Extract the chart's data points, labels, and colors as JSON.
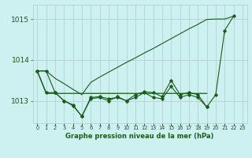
{
  "title": "Graphe pression niveau de la mer (hPa)",
  "bg_color": "#cdf0f0",
  "grid_color": "#b0cccc",
  "line_color": "#1a5c1a",
  "x_labels": [
    "0",
    "1",
    "2",
    "3",
    "4",
    "5",
    "6",
    "7",
    "8",
    "9",
    "10",
    "11",
    "12",
    "13",
    "14",
    "15",
    "16",
    "17",
    "18",
    "19",
    "20",
    "21",
    "22",
    "23"
  ],
  "ylim": [
    1012.45,
    1015.35
  ],
  "yticks": [
    1013.0,
    1014.0,
    1015.0
  ],
  "line_long": {
    "x": [
      0,
      1,
      2,
      3,
      4,
      5,
      6,
      7,
      8,
      9,
      10,
      11,
      12,
      13,
      14,
      15,
      16,
      17,
      18,
      19,
      20,
      21,
      22
    ],
    "y": [
      1013.73,
      1013.73,
      1013.55,
      1013.42,
      1013.28,
      1013.15,
      1013.45,
      1013.58,
      1013.7,
      1013.82,
      1013.94,
      1014.05,
      1014.17,
      1014.28,
      1014.4,
      1014.52,
      1014.64,
      1014.76,
      1014.87,
      1014.99,
      1015.0,
      1015.0,
      1015.07
    ]
  },
  "line_jagged": {
    "x": [
      0,
      1,
      2,
      3,
      4,
      5,
      6,
      7,
      8,
      9,
      10,
      11,
      12,
      13,
      14,
      15,
      16,
      17,
      18,
      19,
      20,
      21,
      22
    ],
    "y": [
      1013.73,
      1013.73,
      1013.2,
      1013.0,
      1012.9,
      1012.62,
      1013.05,
      1013.08,
      1013.0,
      1013.1,
      1013.0,
      1013.15,
      1013.22,
      1013.2,
      1013.1,
      1013.5,
      1013.15,
      1013.2,
      1013.15,
      1012.85,
      1013.15,
      1014.72,
      1015.07
    ]
  },
  "line_flat": {
    "x": [
      0,
      1,
      2,
      3,
      4,
      5,
      6,
      7,
      8,
      9,
      10,
      11,
      12,
      13,
      14,
      15,
      16,
      17,
      18,
      19
    ],
    "y": [
      1013.73,
      1013.18,
      1013.18,
      1013.18,
      1013.18,
      1013.18,
      1013.18,
      1013.18,
      1013.18,
      1013.18,
      1013.18,
      1013.18,
      1013.18,
      1013.18,
      1013.18,
      1013.18,
      1013.18,
      1013.18,
      1013.18,
      1013.18
    ]
  },
  "line_bottom": {
    "x": [
      0,
      1,
      2,
      3,
      4,
      5,
      6,
      7,
      8,
      9,
      10,
      11,
      12,
      13,
      14,
      15,
      16,
      17,
      18,
      19
    ],
    "y": [
      1013.73,
      1013.2,
      1013.2,
      1013.0,
      1012.88,
      1012.62,
      1013.08,
      1013.1,
      1013.05,
      1013.08,
      1013.0,
      1013.08,
      1013.2,
      1013.08,
      1013.05,
      1013.35,
      1013.08,
      1013.15,
      1013.08,
      1012.85
    ]
  }
}
